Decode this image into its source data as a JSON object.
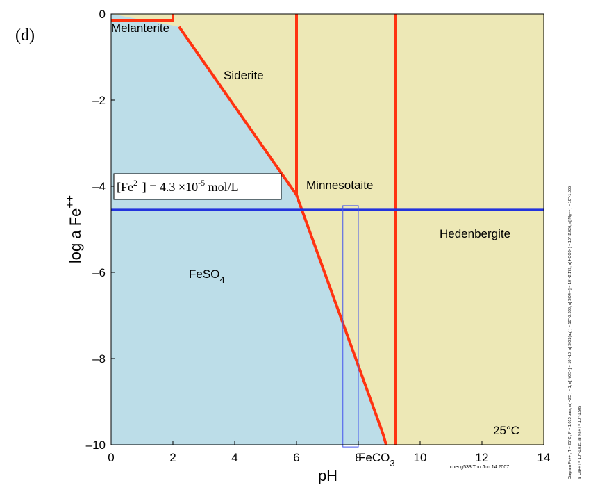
{
  "chart_data": {
    "type": "phase",
    "panel_label": "(d)",
    "xlabel": "pH",
    "ylabel": "log a Fe",
    "ylabel_sup": "++",
    "xlim": [
      0,
      14
    ],
    "xticks": [
      0,
      2,
      4,
      6,
      8,
      10,
      12,
      14
    ],
    "ylim": [
      -10,
      0
    ],
    "yticks": [
      {
        "value": -10,
        "label": "–10"
      },
      {
        "value": -8,
        "label": "–8"
      },
      {
        "value": -6,
        "label": "–6"
      },
      {
        "value": -4,
        "label": "–4"
      },
      {
        "value": -2,
        "label": "–2"
      },
      0
    ],
    "background_color": "#ede8b6",
    "fill_color": "#bcdde8",
    "fill_below": 1,
    "boundaries": [
      {
        "color": "#ff3311",
        "x": [
          0,
          2,
          2
        ],
        "y": [
          -0.15,
          -0.15,
          0
        ]
      },
      {
        "color": "#ff3311",
        "x": [
          2.2,
          6.0,
          6.2,
          8.8,
          8.9
        ],
        "y": [
          -0.3,
          -4.2,
          -4.6,
          -9.75,
          -10
        ]
      },
      {
        "color": "#ff3311",
        "x": [
          6,
          6
        ],
        "y": [
          0,
          -4.2
        ]
      },
      {
        "color": "#ff3311",
        "x": [
          9.2,
          9.2
        ],
        "y": [
          0,
          -10
        ]
      }
    ],
    "level": {
      "color": "#2233dd",
      "y": -4.55
    },
    "window": {
      "color": "#4455ee",
      "x": [
        7.5,
        8.0
      ],
      "y": [
        -4.45,
        -10.05
      ]
    },
    "regions": [
      {
        "name": "Melanterite"
      },
      {
        "name": "Siderite"
      },
      {
        "name": "Minnesotaite"
      },
      {
        "name": "Hedenbergite"
      },
      {
        "name": "FeSO",
        "sub": "4"
      },
      {
        "name": "FeCO",
        "sub": "3"
      }
    ],
    "temperature": "25°C",
    "annotation": {
      "a": "[Fe",
      "b": "2+",
      "c": "] = 4.3  ×10",
      "d": "-5",
      "e": " mol/L"
    },
    "conditions": [
      "Diagram Fe++ , T = 25°C , P = 1.013 bars, a[ H2O ] = 1, a[ NO3- ] = 10^-10, a[ SiO2(aq) ] = 10^-2.338, a[ SO4-- ] = 10^-2.179, a[ HCO3- ] = 10^-2.026, a[ Mg++ ] = 10^-1.665",
      "a[ Ca++ ] = 10^-1.815, a[ Na+ ] = 10^-1.505"
    ],
    "footer": "cheng533 Thu Jun 14 2007"
  }
}
